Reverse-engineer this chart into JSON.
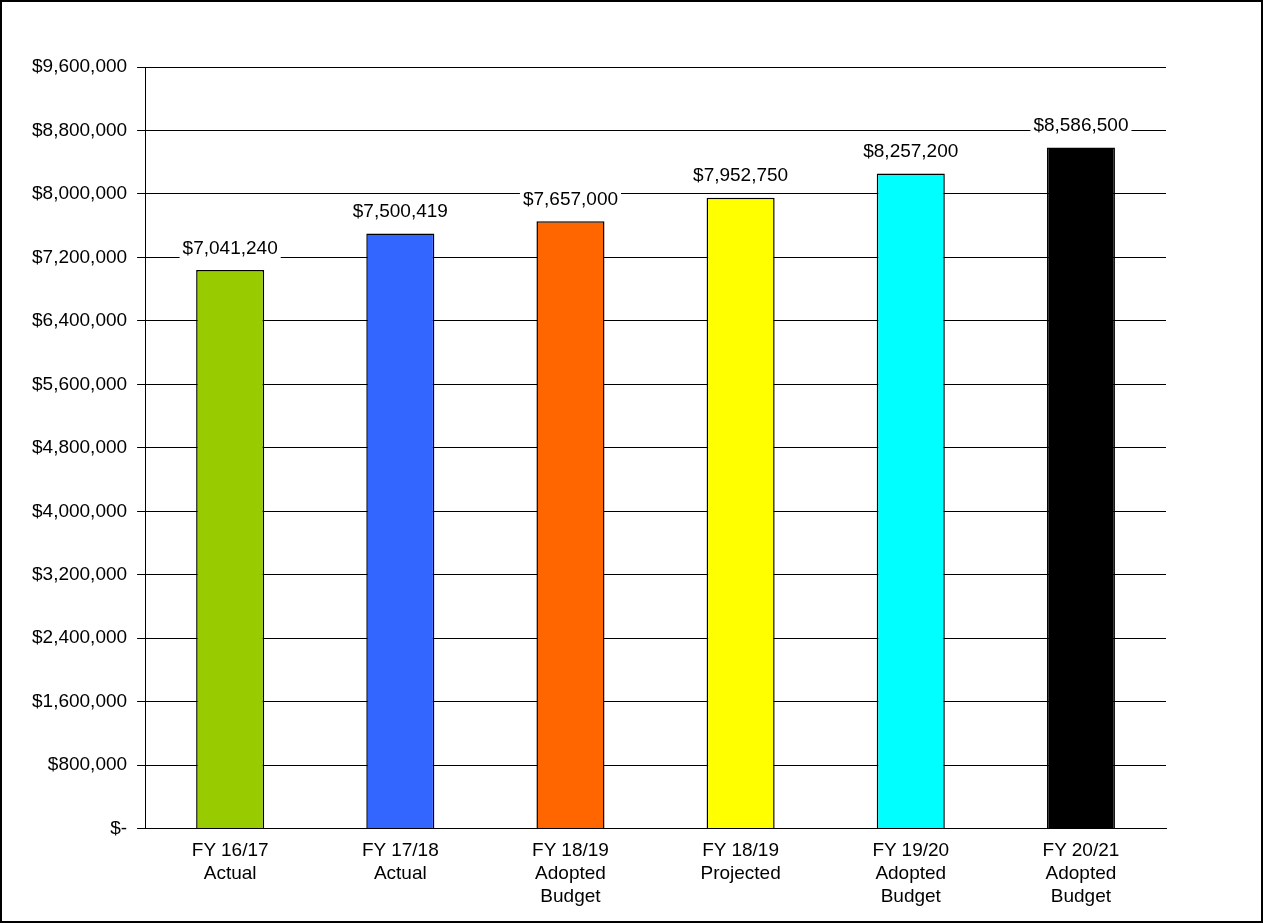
{
  "chart_data": {
    "type": "bar",
    "categories": [
      "FY 16/17\nActual",
      "FY 17/18\nActual",
      "FY 18/19\nAdopted\nBudget",
      "FY 18/19\nProjected",
      "FY 19/20\nAdopted\nBudget",
      "FY 20/21\nAdopted\nBudget"
    ],
    "values": [
      7041240,
      7500419,
      7657000,
      7952750,
      8257200,
      8586500
    ],
    "colors": [
      "#99cc00",
      "#3366ff",
      "#ff6600",
      "#ffff00",
      "#00ffff",
      "#000000"
    ],
    "value_labels": [
      "$7,041,240",
      "$7,500,419",
      "$7,657,000",
      "$7,952,750",
      "$8,257,200",
      "$8,586,500"
    ],
    "ylim": [
      0,
      9600000
    ],
    "yticks": [
      {
        "value": 0,
        "label": "$-"
      },
      {
        "value": 800000,
        "label": "$800,000"
      },
      {
        "value": 1600000,
        "label": "$1,600,000"
      },
      {
        "value": 2400000,
        "label": "$2,400,000"
      },
      {
        "value": 3200000,
        "label": "$3,200,000"
      },
      {
        "value": 4000000,
        "label": "$4,000,000"
      },
      {
        "value": 4800000,
        "label": "$4,800,000"
      },
      {
        "value": 5600000,
        "label": "$5,600,000"
      },
      {
        "value": 6400000,
        "label": "$6,400,000"
      },
      {
        "value": 7200000,
        "label": "$7,200,000"
      },
      {
        "value": 8000000,
        "label": "$8,000,000"
      },
      {
        "value": 8800000,
        "label": "$8,800,000"
      },
      {
        "value": 9600000,
        "label": "$9,600,000"
      }
    ],
    "grid": "y",
    "legend": false
  }
}
